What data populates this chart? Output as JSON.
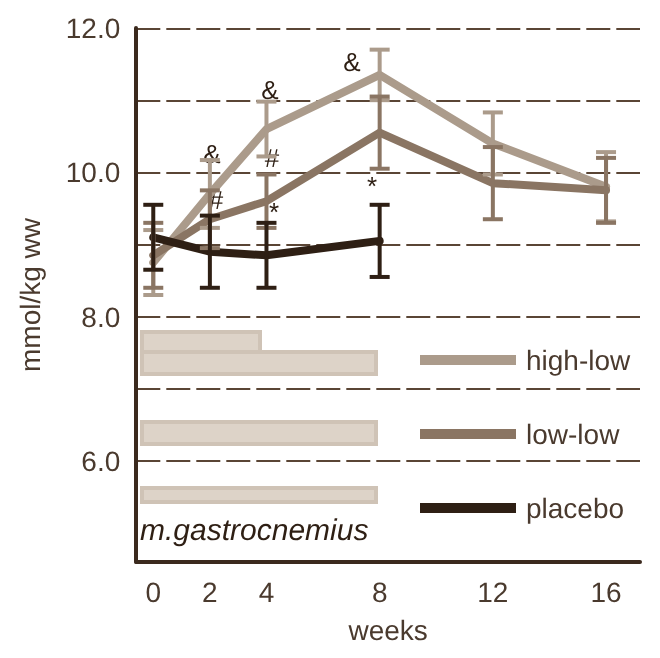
{
  "chart_data": {
    "type": "line",
    "xlabel": "weeks",
    "ylabel": "mmol/kg ww",
    "x": [
      0,
      2,
      4,
      8,
      12,
      16
    ],
    "xlim": [
      -0.6,
      17.2
    ],
    "xticks": [
      0,
      2,
      4,
      8,
      12,
      16
    ],
    "ylim": [
      4.6,
      12
    ],
    "yticks": [
      {
        "value": 6,
        "label": "6.0"
      },
      {
        "value": 7,
        "label": null
      },
      {
        "value": 8,
        "label": "8.0"
      },
      {
        "value": 9,
        "label": null
      },
      {
        "value": 10,
        "label": "10.0"
      },
      {
        "value": 11,
        "label": null
      },
      {
        "value": 12,
        "label": "12.0"
      }
    ],
    "grid": "y",
    "legend": "right",
    "marker": "none",
    "line_style": "solid",
    "series": [
      {
        "name": "high-low",
        "color": "#ab9b8b",
        "values": [
          8.75,
          9.7,
          10.6,
          11.35,
          10.4,
          9.8
        ],
        "errors": [
          0.45,
          0.47,
          0.38,
          0.35,
          0.43,
          0.48
        ]
      },
      {
        "name": "low-low",
        "color": "#8a7563",
        "values": [
          8.85,
          9.35,
          9.6,
          10.55,
          9.85,
          9.75
        ],
        "errors": [
          0.45,
          0.4,
          0.37,
          0.5,
          0.5,
          0.45
        ]
      },
      {
        "name": "placebo",
        "color": "#2e1f14",
        "x": [
          0,
          2,
          4,
          8
        ],
        "values": [
          9.1,
          8.9,
          8.85,
          9.05
        ],
        "errors": [
          0.45,
          0.5,
          0.45,
          0.5
        ]
      }
    ],
    "annotations": [
      "&",
      "&",
      "&",
      "#",
      "#",
      "*",
      "*",
      "m.gastrocnemius"
    ]
  }
}
